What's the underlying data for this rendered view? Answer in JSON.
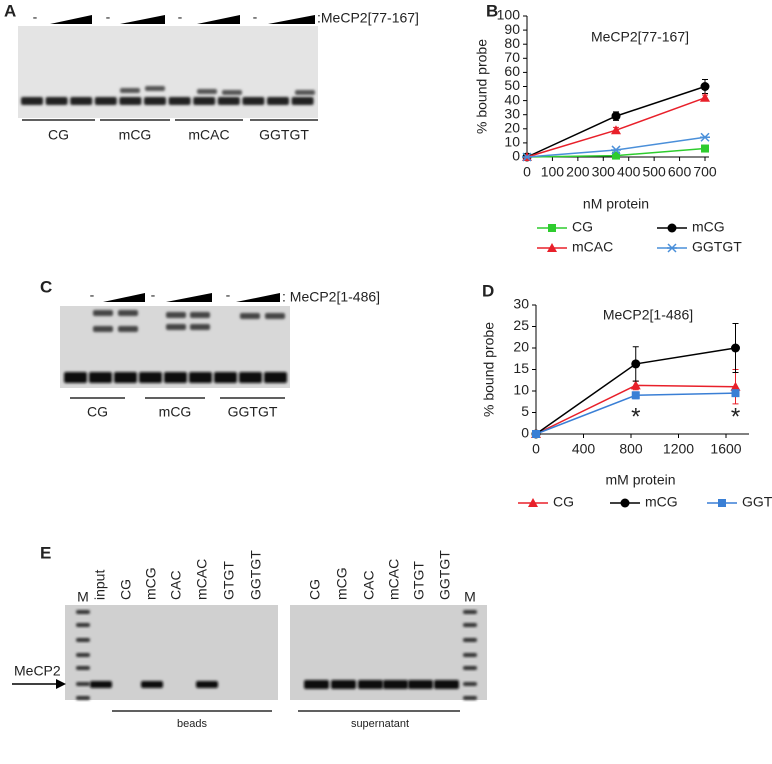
{
  "panel_labels": [
    "A",
    "B",
    "C",
    "D",
    "E"
  ],
  "gel_a": {
    "protein_label": ":MeCP2[77-167]",
    "dashes": [
      "-",
      "-",
      "-",
      "-"
    ],
    "groups": [
      "CG",
      "mCG",
      "mCAC",
      "GGTGT"
    ]
  },
  "gel_c": {
    "protein_label": ": MeCP2[1-486]",
    "dashes": [
      "-",
      "-",
      "-"
    ],
    "groups": [
      "CG",
      "mCG",
      "GGTGT"
    ]
  },
  "gel_e": {
    "marker_label": "MeCP2",
    "left_lanes": [
      "M",
      "input",
      "CG",
      "mCG",
      "CAC",
      "mCAC",
      "GTGT",
      "GGTGT"
    ],
    "right_lanes": [
      "CG",
      "mCG",
      "CAC",
      "mCAC",
      "GTGT",
      "GGTGT",
      "M"
    ],
    "left_group": "beads",
    "right_group": "supernatant"
  },
  "chart_data": [
    {
      "type": "line",
      "title": "MeCP2[77-167]",
      "x_label": "nM protein",
      "y_label": "% bound probe",
      "x": [
        0,
        350,
        700
      ],
      "xlim": [
        0,
        700
      ],
      "ylim": [
        0,
        100
      ],
      "xticks": [
        0,
        100,
        200,
        300,
        400,
        500,
        600,
        700
      ],
      "yticks": [
        0,
        10,
        20,
        30,
        40,
        50,
        60,
        70,
        80,
        90,
        100
      ],
      "legend": "bottom",
      "series": [
        {
          "name": "CG",
          "color": "#2ecc2e",
          "marker": "square",
          "values": [
            0,
            1,
            6
          ]
        },
        {
          "name": "mCG",
          "color": "#000000",
          "marker": "circle",
          "values": [
            0,
            29,
            50
          ],
          "errors": [
            0,
            3,
            5
          ]
        },
        {
          "name": "mCAC",
          "color": "#e8202a",
          "marker": "triangle",
          "values": [
            0,
            19,
            42
          ],
          "errors": [
            0,
            2,
            2
          ]
        },
        {
          "name": "GGTGT",
          "color": "#4a8fd9",
          "marker": "asterisk",
          "values": [
            0,
            5,
            14
          ]
        }
      ]
    },
    {
      "type": "line",
      "title": "MeCP2[1-486]",
      "x_label": "mM protein",
      "y_label": "% bound probe",
      "x": [
        0,
        840,
        1680
      ],
      "xlim": [
        0,
        1760
      ],
      "ylim": [
        0,
        30
      ],
      "xticks": [
        0,
        400,
        800,
        1200,
        1600
      ],
      "yticks": [
        0,
        5,
        10,
        15,
        20,
        25,
        30
      ],
      "legend": "bottom",
      "annotations": [
        "*",
        "*"
      ],
      "series": [
        {
          "name": "CG",
          "color": "#e8202a",
          "marker": "triangle",
          "values": [
            0,
            11.3,
            11
          ],
          "errors": [
            0,
            1,
            4
          ]
        },
        {
          "name": "mCG",
          "color": "#000000",
          "marker": "circle",
          "values": [
            0,
            16.3,
            20
          ],
          "errors": [
            0,
            4,
            5.7
          ]
        },
        {
          "name": "GGTGT",
          "color": "#3a7fd5",
          "marker": "square",
          "values": [
            0,
            9,
            9.5
          ],
          "errors": [
            0,
            0.8,
            0.5
          ]
        }
      ]
    }
  ]
}
